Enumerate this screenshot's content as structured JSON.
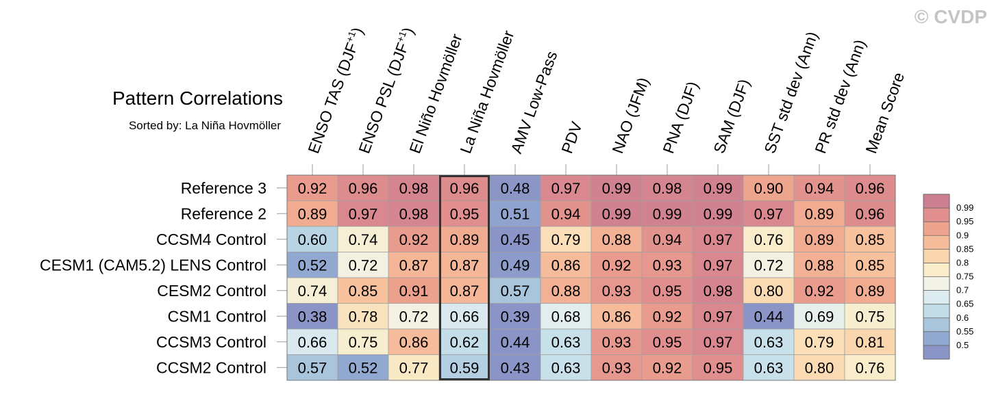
{
  "watermark": "© CVDP",
  "chart_data": {
    "type": "heatmap",
    "title": "Pattern Correlations",
    "subtitle": "Sorted by: La Niña Hovmöller",
    "columns": [
      "ENSO TAS (DJF+1)",
      "ENSO PSL (DJF+1)",
      "El Niño Hovmöller",
      "La Niña Hovmöller",
      "AMV Low-Pass",
      "PDV",
      "NAO (JFM)",
      "PNA (DJF)",
      "SAM (DJF)",
      "SST std dev (Ann)",
      "PR std dev (Ann)",
      "Mean Score"
    ],
    "rows": [
      "Reference 3",
      "Reference 2",
      "CCSM4 Control",
      "CESM1 (CAM5.2) LENS Control",
      "CESM2 Control",
      "CSM1 Control",
      "CCSM3 Control",
      "CCSM2 Control"
    ],
    "values": [
      [
        0.92,
        0.96,
        0.98,
        0.96,
        0.48,
        0.97,
        0.99,
        0.98,
        0.99,
        0.9,
        0.94,
        0.96
      ],
      [
        0.89,
        0.97,
        0.98,
        0.95,
        0.51,
        0.94,
        0.99,
        0.99,
        0.99,
        0.97,
        0.89,
        0.96
      ],
      [
        0.6,
        0.74,
        0.92,
        0.89,
        0.45,
        0.79,
        0.88,
        0.94,
        0.97,
        0.76,
        0.89,
        0.85
      ],
      [
        0.52,
        0.72,
        0.87,
        0.87,
        0.49,
        0.86,
        0.92,
        0.93,
        0.97,
        0.72,
        0.88,
        0.85
      ],
      [
        0.74,
        0.85,
        0.91,
        0.87,
        0.57,
        0.88,
        0.93,
        0.95,
        0.98,
        0.8,
        0.92,
        0.89
      ],
      [
        0.38,
        0.78,
        0.72,
        0.66,
        0.39,
        0.68,
        0.86,
        0.92,
        0.97,
        0.44,
        0.69,
        0.75
      ],
      [
        0.66,
        0.75,
        0.86,
        0.62,
        0.44,
        0.63,
        0.93,
        0.95,
        0.97,
        0.63,
        0.79,
        0.81
      ],
      [
        0.57,
        0.52,
        0.77,
        0.59,
        0.43,
        0.63,
        0.93,
        0.92,
        0.95,
        0.63,
        0.8,
        0.76
      ]
    ],
    "highlighted_column": "La Niña Hovmöller",
    "colorbar": {
      "labels": [
        "0.99",
        "0.95",
        "0.9",
        "0.85",
        "0.8",
        "0.75",
        "0.7",
        "0.65",
        "0.6",
        "0.55",
        "0.5"
      ],
      "colors": [
        "#cc7f90",
        "#e08e8e",
        "#eda38d",
        "#f6bd9b",
        "#fad6ae",
        "#f9ecc9",
        "#f2f3e6",
        "#dcebf0",
        "#c2dde8",
        "#a8c5dc",
        "#91a9d1",
        "#8a94c6"
      ]
    },
    "legend_position": "right"
  }
}
